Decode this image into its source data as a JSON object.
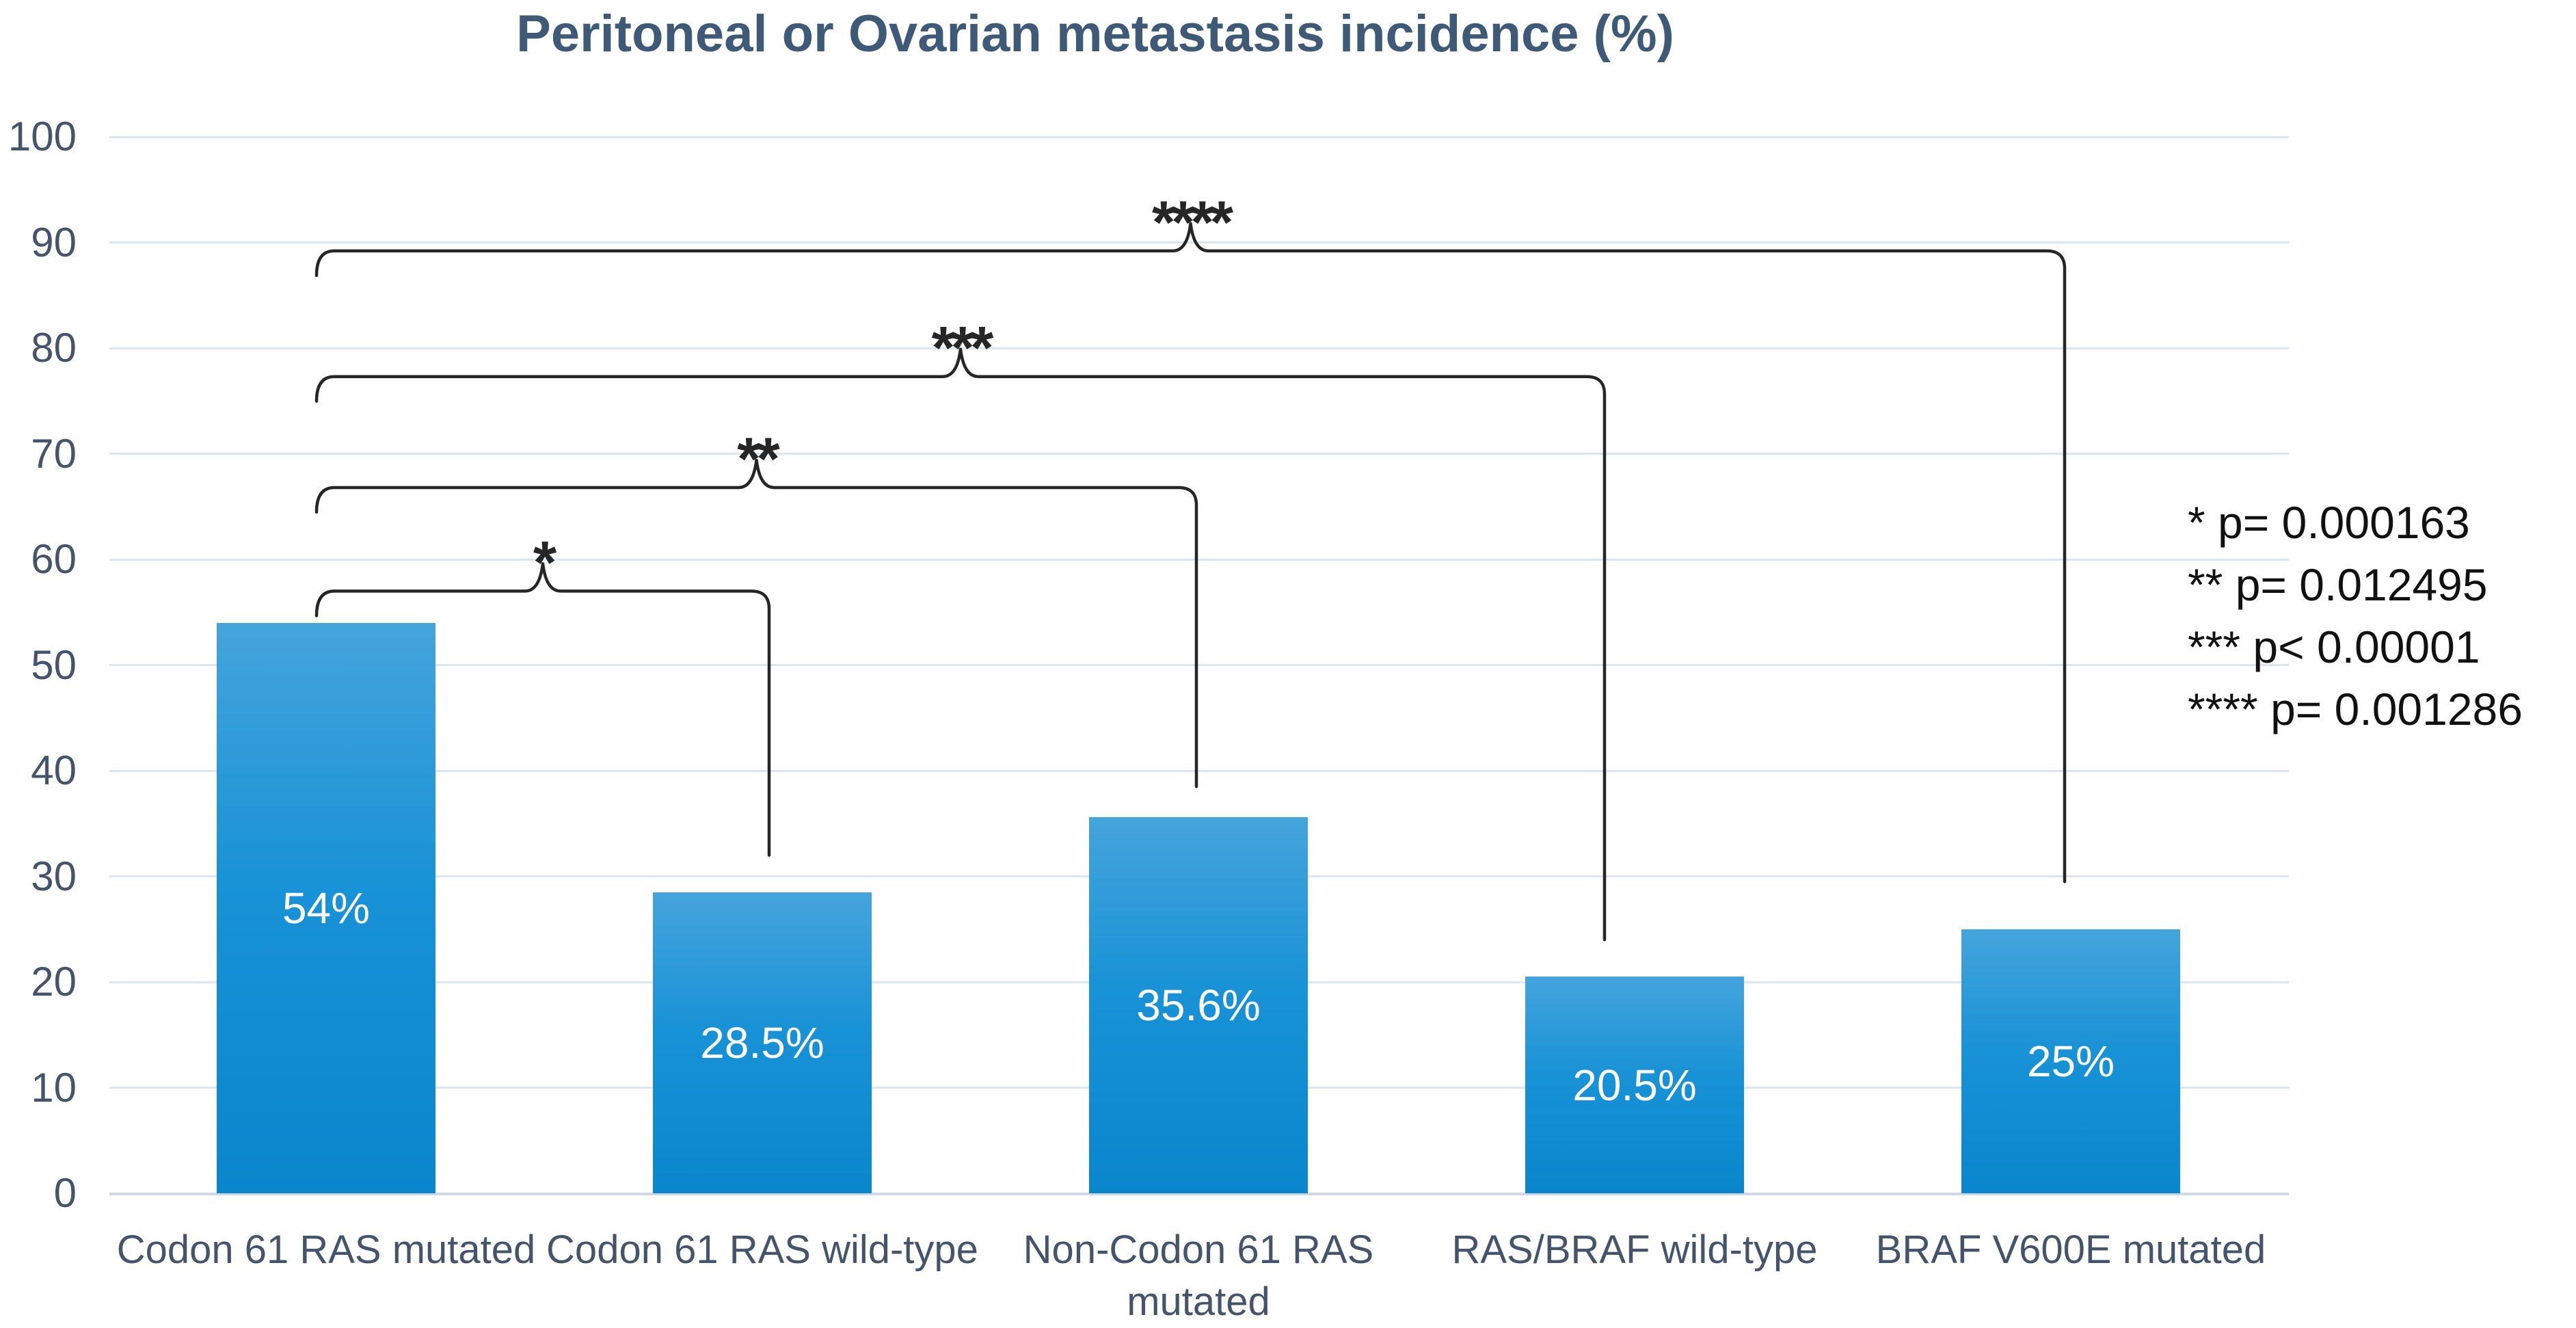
{
  "title": "Peritoneal or Ovarian metastasis incidence (%)",
  "chart_data": {
    "type": "bar",
    "title": "Peritoneal or Ovarian metastasis incidence (%)",
    "categories": [
      "Codon 61 RAS mutated",
      "Codon 61 RAS wild-type",
      "Non-Codon 61 RAS mutated",
      "RAS/BRAF wild-type",
      "BRAF V600E mutated"
    ],
    "values": [
      54,
      28.5,
      35.6,
      20.5,
      25
    ],
    "value_labels": [
      "54%",
      "28.5%",
      "35.6%",
      "20.5%",
      "25%"
    ],
    "xlabel": "",
    "ylabel": "",
    "ylim": [
      0,
      100
    ],
    "ytick_step": 10,
    "grid": true,
    "legend_position": "right",
    "significance_brackets": [
      {
        "stars": "*",
        "from_category": "Codon 61 RAS mutated",
        "to_category": "Codon 61 RAS wild-type",
        "p_text": "p= 0.000163",
        "line_pct": 57.0,
        "drop_pct": 32.0
      },
      {
        "stars": "**",
        "from_category": "Codon 61 RAS mutated",
        "to_category": "Non-Codon 61 RAS mutated",
        "p_text": "p= 0.012495",
        "line_pct": 66.8,
        "drop_pct": 38.5
      },
      {
        "stars": "***",
        "from_category": "Codon 61 RAS mutated",
        "to_category": "RAS/BRAF wild-type",
        "p_text": "p< 0.00001",
        "line_pct": 77.3,
        "drop_pct": 24.0
      },
      {
        "stars": "****",
        "from_category": "Codon 61 RAS mutated",
        "to_category": "BRAF V600E mutated",
        "p_text": "p= 0.001286",
        "line_pct": 89.2,
        "drop_pct": 29.5
      }
    ],
    "legend_lines": [
      "* p= 0.000163",
      "** p= 0.012495",
      "*** p< 0.00001",
      "**** p= 0.001286"
    ],
    "colors": {
      "bar_top": "#45A4DC",
      "bar_mid": "#1992D6",
      "bar_bottom": "#0A86CE",
      "title_text": "#3E5A77",
      "axis_text": "#44546A",
      "gridline": "#dce5f0",
      "baseline": "#cfd8e4",
      "annotation": "#262626",
      "bar_value_text": "#ffffff"
    }
  }
}
